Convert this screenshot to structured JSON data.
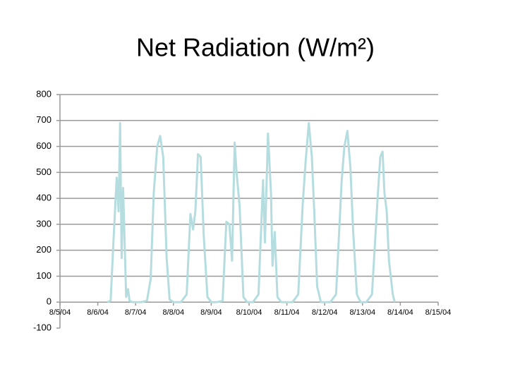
{
  "chart_data": {
    "type": "line",
    "title": "Net Radiation (W/m²)",
    "xlim": [
      0,
      10
    ],
    "xticks": [
      {
        "value": 0,
        "label": "8/5/04"
      },
      {
        "value": 1,
        "label": "8/6/04"
      },
      {
        "value": 2,
        "label": "8/7/04"
      },
      {
        "value": 3,
        "label": "8/8/04"
      },
      {
        "value": 4,
        "label": "8/9/04"
      },
      {
        "value": 5,
        "label": "8/10/04"
      },
      {
        "value": 6,
        "label": "8/11/04"
      },
      {
        "value": 7,
        "label": "8/12/04"
      },
      {
        "value": 8,
        "label": "8/13/04"
      },
      {
        "value": 9,
        "label": "8/14/04"
      },
      {
        "value": 10,
        "label": "8/15/04"
      }
    ],
    "ylim": [
      -100,
      800
    ],
    "yticks": [
      -100,
      0,
      100,
      200,
      300,
      400,
      500,
      600,
      700,
      800
    ],
    "grid": true,
    "series": [
      {
        "color": "#b5dde0",
        "x": [
          1.25,
          1.34,
          1.42,
          1.5,
          1.55,
          1.59,
          1.63,
          1.67,
          1.75,
          1.8,
          1.84,
          1.92,
          2.15,
          2.3,
          2.4,
          2.48,
          2.57,
          2.65,
          2.73,
          2.82,
          2.9,
          3.0,
          3.2,
          3.35,
          3.45,
          3.52,
          3.58,
          3.65,
          3.72,
          3.8,
          3.9,
          4.0,
          4.15,
          4.3,
          4.4,
          4.48,
          4.55,
          4.62,
          4.67,
          4.75,
          4.85,
          4.95,
          5.1,
          5.25,
          5.37,
          5.42,
          5.5,
          5.58,
          5.62,
          5.68,
          5.75,
          5.85,
          6.15,
          6.3,
          6.42,
          6.5,
          6.58,
          6.66,
          6.73,
          6.8,
          6.9,
          7.15,
          7.3,
          7.45,
          7.52,
          7.6,
          7.68,
          7.75,
          7.85,
          7.95,
          8.1,
          8.25,
          8.4,
          8.47,
          8.53,
          8.58,
          8.64,
          8.7,
          8.8,
          8.85
        ],
        "values": [
          0,
          5,
          250,
          480,
          350,
          690,
          170,
          440,
          20,
          50,
          5,
          0,
          0,
          5,
          90,
          420,
          600,
          640,
          560,
          170,
          10,
          0,
          0,
          30,
          340,
          280,
          350,
          570,
          560,
          260,
          20,
          0,
          0,
          5,
          310,
          300,
          160,
          615,
          500,
          370,
          20,
          0,
          0,
          30,
          470,
          230,
          650,
          420,
          140,
          270,
          20,
          0,
          0,
          30,
          380,
          550,
          690,
          560,
          330,
          60,
          0,
          0,
          30,
          470,
          600,
          660,
          520,
          280,
          30,
          0,
          0,
          30,
          400,
          560,
          580,
          420,
          350,
          160,
          30,
          0
        ]
      }
    ]
  }
}
